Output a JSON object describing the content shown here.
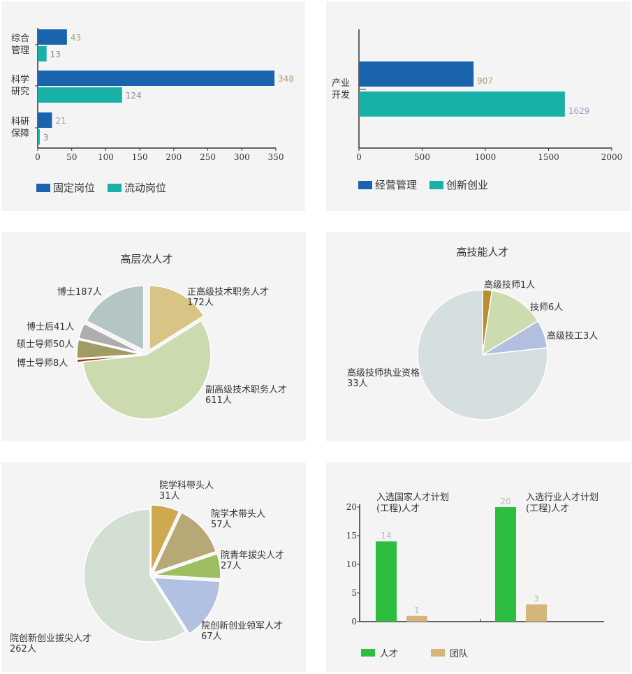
{
  "chart_data": [
    {
      "type": "bar",
      "orientation": "horizontal",
      "categories": [
        "综合\n管理",
        "科学\n研究",
        "科研\n保障"
      ],
      "series": [
        {
          "name": "固定岗位",
          "values": [
            43,
            348,
            21
          ],
          "color": "#1a63ad"
        },
        {
          "name": "流动岗位",
          "values": [
            13,
            124,
            3
          ],
          "color": "#17b1a7"
        }
      ],
      "xlim": [
        0,
        350
      ],
      "ticks": [
        "0",
        "50",
        "100",
        "150",
        "200",
        "250",
        "300",
        "350"
      ],
      "legend": "bottom-left",
      "value_label_colors": [
        "#a9a47b",
        "#8a8a8a"
      ]
    },
    {
      "type": "bar",
      "orientation": "horizontal",
      "categories": [
        "产业\n开发"
      ],
      "series": [
        {
          "name": "经营管理",
          "values": [
            907
          ],
          "color": "#1a63ad"
        },
        {
          "name": "创新创业",
          "values": [
            1629
          ],
          "color": "#17b1a7"
        }
      ],
      "xlim": [
        0,
        2000
      ],
      "ticks": [
        "0",
        "500",
        "1000",
        "1500",
        "2000"
      ],
      "legend": "bottom-left",
      "value_label_colors": [
        "#a9a47b",
        "#a49ac8"
      ]
    },
    {
      "type": "pie",
      "title": "高层次人才",
      "slices": [
        {
          "name": "正高级技术职务人才",
          "value": 172,
          "label": [
            "正高级技术职务人才",
            "172人"
          ],
          "color": "#d8c484",
          "explode": true
        },
        {
          "name": "副高级技术职务人才",
          "value": 611,
          "label": [
            "副高级技术职务人才",
            "611人"
          ],
          "color": "#cbdbaf",
          "explode": false
        },
        {
          "name": "博士导师",
          "value": 8,
          "label": [
            "博士导师8人"
          ],
          "color": "#9a3b14",
          "explode": true
        },
        {
          "name": "硕士导师",
          "value": 50,
          "label": [
            "硕士导师50人"
          ],
          "color": "#a19b64",
          "explode": true
        },
        {
          "name": "博士后",
          "value": 41,
          "label": [
            "博士后41人"
          ],
          "color": "#aeaeae",
          "explode": true
        },
        {
          "name": "博士",
          "value": 187,
          "label": [
            "博士187人"
          ],
          "color": "#b4c6c3",
          "explode": true
        }
      ]
    },
    {
      "type": "pie",
      "title": "高技能人才",
      "slices": [
        {
          "name": "高级技师",
          "value": 1,
          "label": [
            "高级技师1人"
          ],
          "color": "#b88f2c"
        },
        {
          "name": "技师",
          "value": 6,
          "label": [
            "技师6人"
          ],
          "color": "#ccdcb0"
        },
        {
          "name": "高级技工",
          "value": 3,
          "label": [
            "高级技工3人"
          ],
          "color": "#b2bfe0"
        },
        {
          "name": "高级技师执业资格",
          "value": 33,
          "label": [
            "高级技师执业资格",
            "33人"
          ],
          "color": "#d6dfe0"
        }
      ]
    },
    {
      "type": "pie",
      "slices": [
        {
          "name": "院学科带头人",
          "value": 31,
          "label": [
            "院学科带头人",
            "31人"
          ],
          "color": "#cfa94f"
        },
        {
          "name": "院学术带头人",
          "value": 57,
          "label": [
            "院学术带头人",
            "57人"
          ],
          "color": "#b7a877"
        },
        {
          "name": "院青年拔尖人才",
          "value": 27,
          "label": [
            "院青年拔尖人才",
            "27人"
          ],
          "color": "#9fbe62"
        },
        {
          "name": "院创新创业领军人才",
          "value": 67,
          "label": [
            "院创新创业领军人才",
            "67人"
          ],
          "color": "#b2c0e2"
        },
        {
          "name": "院创新创业拔尖人才",
          "value": 262,
          "label": [
            "院创新创业拔尖人才",
            "262人"
          ],
          "color": "#d3dfd2"
        }
      ]
    },
    {
      "type": "bar",
      "orientation": "vertical",
      "categories": [
        "入选国家人才计划\n(工程)人才",
        "入选行业人才计划\n(工程)人才"
      ],
      "series": [
        {
          "name": "人才",
          "values": [
            14,
            20
          ],
          "color": "#2dbd3f"
        },
        {
          "name": "团队",
          "values": [
            1,
            3
          ],
          "color": "#d6b57d"
        }
      ],
      "ylim": [
        0,
        20
      ],
      "ticks": [
        "0",
        "5",
        "10",
        "15",
        "20"
      ],
      "legend": "bottom-left"
    }
  ]
}
